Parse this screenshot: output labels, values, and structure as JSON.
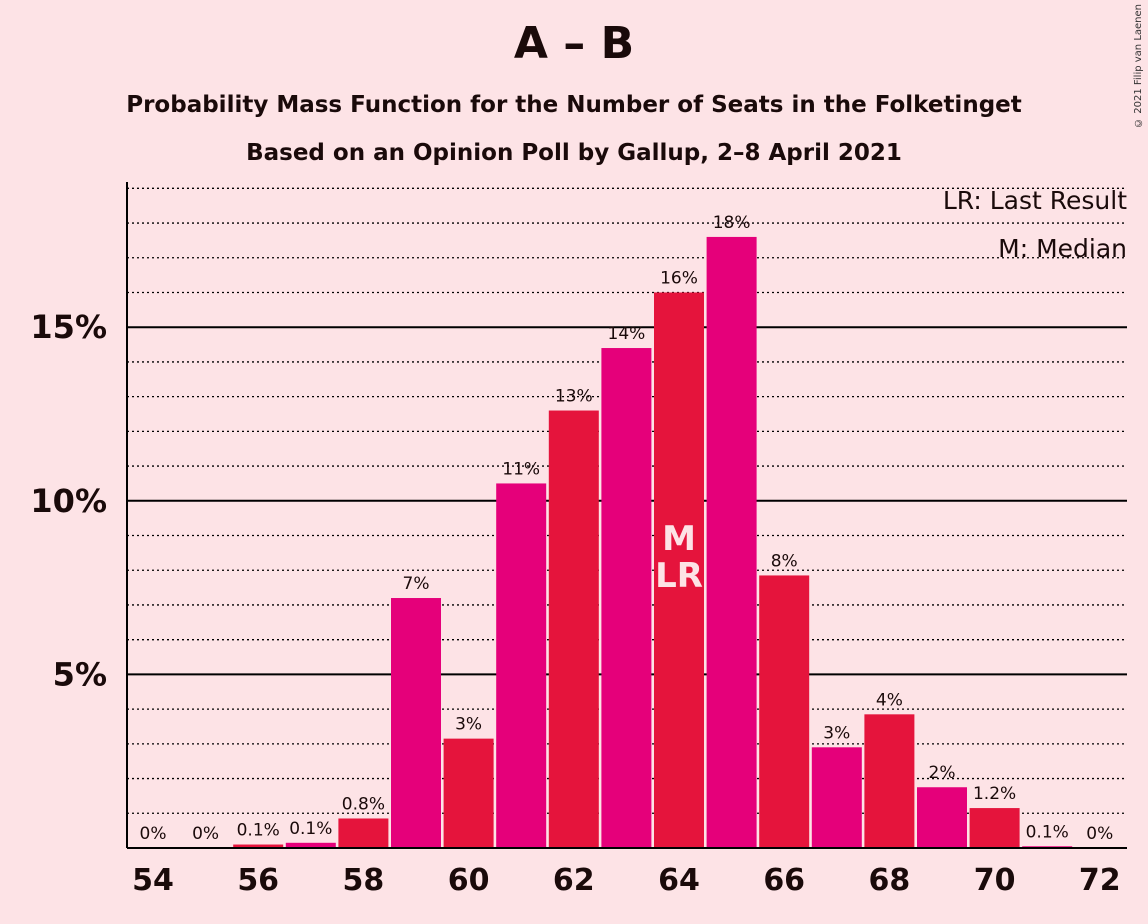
{
  "header": {
    "title": "A – B",
    "subtitle1": "Probability Mass Function for the Number of Seats in the Folketinget",
    "subtitle2": "Based on an Opinion Poll by Gallup, 2–8 April 2021",
    "copyright": "© 2021 Filip van Laenen"
  },
  "legend": {
    "lr": "LR: Last Result",
    "m": "M: Median"
  },
  "colors": {
    "background": "#FDE3E6",
    "bar_a": "#E5007A",
    "bar_b": "#E5143C"
  },
  "chart_data": {
    "type": "bar",
    "categories": [
      54,
      55,
      56,
      57,
      58,
      59,
      60,
      61,
      62,
      63,
      64,
      65,
      66,
      67,
      68,
      69,
      70,
      71,
      72
    ],
    "values": [
      0,
      0,
      0.1,
      0.15,
      0.85,
      7.2,
      3.15,
      10.5,
      12.6,
      14.4,
      16,
      17.6,
      7.85,
      2.9,
      3.85,
      1.75,
      1.15,
      0.05,
      0
    ],
    "data_labels": [
      "0%",
      "0%",
      "0.1%",
      "0.1%",
      "0.8%",
      "7%",
      "3%",
      "11%",
      "13%",
      "14%",
      "16%",
      "18%",
      "8%",
      "3%",
      "4%",
      "2%",
      "1.2%",
      "0.1%",
      "0%"
    ],
    "x_tick_labels": [
      "54",
      "56",
      "58",
      "60",
      "62",
      "64",
      "66",
      "68",
      "70",
      "72"
    ],
    "y_ticks": [
      5,
      10,
      15
    ],
    "y_tick_labels": [
      "5%",
      "10%",
      "15%"
    ],
    "ylim": [
      0,
      19
    ],
    "median": 64,
    "last_result": 64,
    "median_label": "M",
    "last_result_label": "LR",
    "grid": true,
    "legend_position": "top-right"
  }
}
